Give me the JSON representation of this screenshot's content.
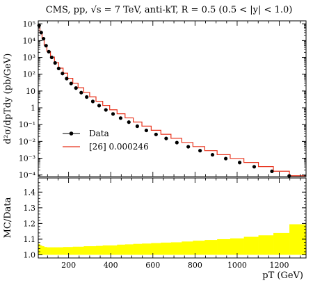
{
  "title": "CMS, pp, √s = 7 TeV, anti-kT, R = 0.5 (0.5 < |y| < 1.0)",
  "chart_data": [
    {
      "type": "line",
      "panel": "main",
      "ylabel": "d²σ/dpTdy (pb/GeV)",
      "yscale": "log",
      "ylim": [
        8e-05,
        150000
      ],
      "xlim": [
        56,
        1327
      ],
      "y_tick_labels": [
        "10⁻⁴",
        "10⁻³",
        "10⁻²",
        "10⁻¹",
        "1",
        "10",
        "10²",
        "10³",
        "10⁴",
        "10⁵"
      ],
      "legend_position": "center-left",
      "series": [
        {
          "name": "Data",
          "style": "markers",
          "color": "#000000",
          "x": [
            60,
            70,
            81,
            93,
            106,
            120,
            136,
            153,
            171,
            191,
            212,
            235,
            260,
            286,
            315,
            345,
            377,
            411,
            447,
            486,
            526,
            569,
            615,
            663,
            714,
            768,
            824,
            883,
            946,
            1012,
            1081,
            1165,
            1247,
            1295
          ],
          "y": [
            80000,
            30000,
            13000,
            5000,
            2200,
            1000,
            470,
            220,
            110,
            55,
            28,
            15,
            8,
            4.4,
            2.4,
            1.35,
            0.75,
            0.43,
            0.245,
            0.14,
            0.08,
            0.045,
            0.026,
            0.015,
            0.0085,
            0.0048,
            0.0028,
            0.0016,
            0.00095,
            0.00055,
            0.00031,
            0.000165,
            8.8e-05,
            3e-05
          ]
        },
        {
          "name": "[26] 0.000246",
          "style": "step",
          "color": "#e8311a",
          "edges": [
            56,
            64,
            74,
            84,
            97,
            114,
            133,
            153,
            174,
            196,
            220,
            245,
            272,
            300,
            330,
            362,
            395,
            430,
            468,
            507,
            548,
            592,
            638,
            686,
            737,
            790,
            846,
            905,
            967,
            1032,
            1101,
            1172,
            1248,
            1327
          ],
          "y": [
            85000,
            32000,
            14000,
            5400,
            2300,
            1050,
            490,
            230,
            115,
            57,
            29,
            15.5,
            8.2,
            4.5,
            2.45,
            1.38,
            0.76,
            0.44,
            0.25,
            0.142,
            0.081,
            0.046,
            0.0265,
            0.0152,
            0.0086,
            0.0049,
            0.0028,
            0.00162,
            0.00096,
            0.00056,
            0.000315,
            0.000168,
            9e-05
          ]
        }
      ]
    },
    {
      "type": "area",
      "panel": "ratio",
      "xlabel": "pT (GeV)",
      "ylabel": "MC/Data",
      "ylim": [
        0.98,
        1.49
      ],
      "xlim": [
        56,
        1327
      ],
      "x_tick_labels": [
        "200",
        "400",
        "600",
        "800",
        "1000",
        "1200"
      ],
      "y_tick_labels": [
        "1.0",
        "1.1",
        "1.2",
        "1.3",
        "1.4"
      ],
      "series": [
        {
          "name": "",
          "style": "band",
          "color": "#ffff00",
          "edges": [
            56,
            64,
            74,
            84,
            97,
            114,
            133,
            153,
            174,
            196,
            220,
            245,
            272,
            300,
            330,
            362,
            395,
            430,
            468,
            507,
            548,
            592,
            638,
            686,
            737,
            790,
            846,
            905,
            967,
            1032,
            1101,
            1172,
            1248,
            1327
          ],
          "y": [
            1.07,
            1.06,
            1.055,
            1.05,
            1.048,
            1.048,
            1.048,
            1.048,
            1.05,
            1.05,
            1.052,
            1.052,
            1.055,
            1.055,
            1.057,
            1.06,
            1.06,
            1.065,
            1.067,
            1.07,
            1.072,
            1.075,
            1.078,
            1.08,
            1.085,
            1.09,
            1.095,
            1.1,
            1.105,
            1.115,
            1.125,
            1.14,
            1.195
          ]
        }
      ]
    }
  ]
}
